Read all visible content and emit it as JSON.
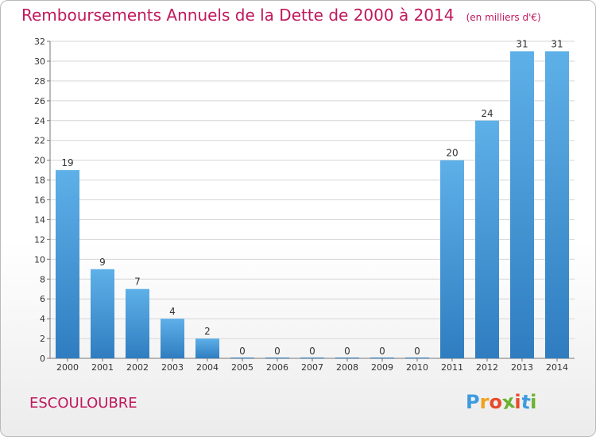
{
  "title": "Remboursements Annuels de la Dette de 2000 à 2014",
  "unit_note": "(en milliers d'€)",
  "commune": "ESCOULOUBRE",
  "logo": {
    "letters": [
      "P",
      "r",
      "o",
      "x",
      "i",
      "t",
      "i"
    ],
    "colors": [
      "#3d9be0",
      "#f0a21a",
      "#e94a2c",
      "#6ab22f",
      "#e94a2c",
      "#3d9be0",
      "#6ab22f"
    ]
  },
  "colors": {
    "bar_top": "#5eb0e8",
    "bar_bottom": "#2f7dc0",
    "title": "#c0185c"
  },
  "chart_data": {
    "type": "bar",
    "title": "Remboursements Annuels de la Dette de 2000 à 2014",
    "unit": "(en milliers d'€)",
    "categories": [
      "2000",
      "2001",
      "2002",
      "2003",
      "2004",
      "2005",
      "2006",
      "2007",
      "2008",
      "2009",
      "2010",
      "2011",
      "2012",
      "2013",
      "2014"
    ],
    "values": [
      19,
      9,
      7,
      4,
      2,
      0,
      0,
      0,
      0,
      0,
      0,
      20,
      24,
      31,
      31
    ],
    "ylim": [
      0,
      32
    ],
    "yticks": [
      0,
      2,
      4,
      6,
      8,
      10,
      12,
      14,
      16,
      18,
      20,
      22,
      24,
      26,
      28,
      30,
      32
    ],
    "grid": true,
    "data_labels": true
  }
}
